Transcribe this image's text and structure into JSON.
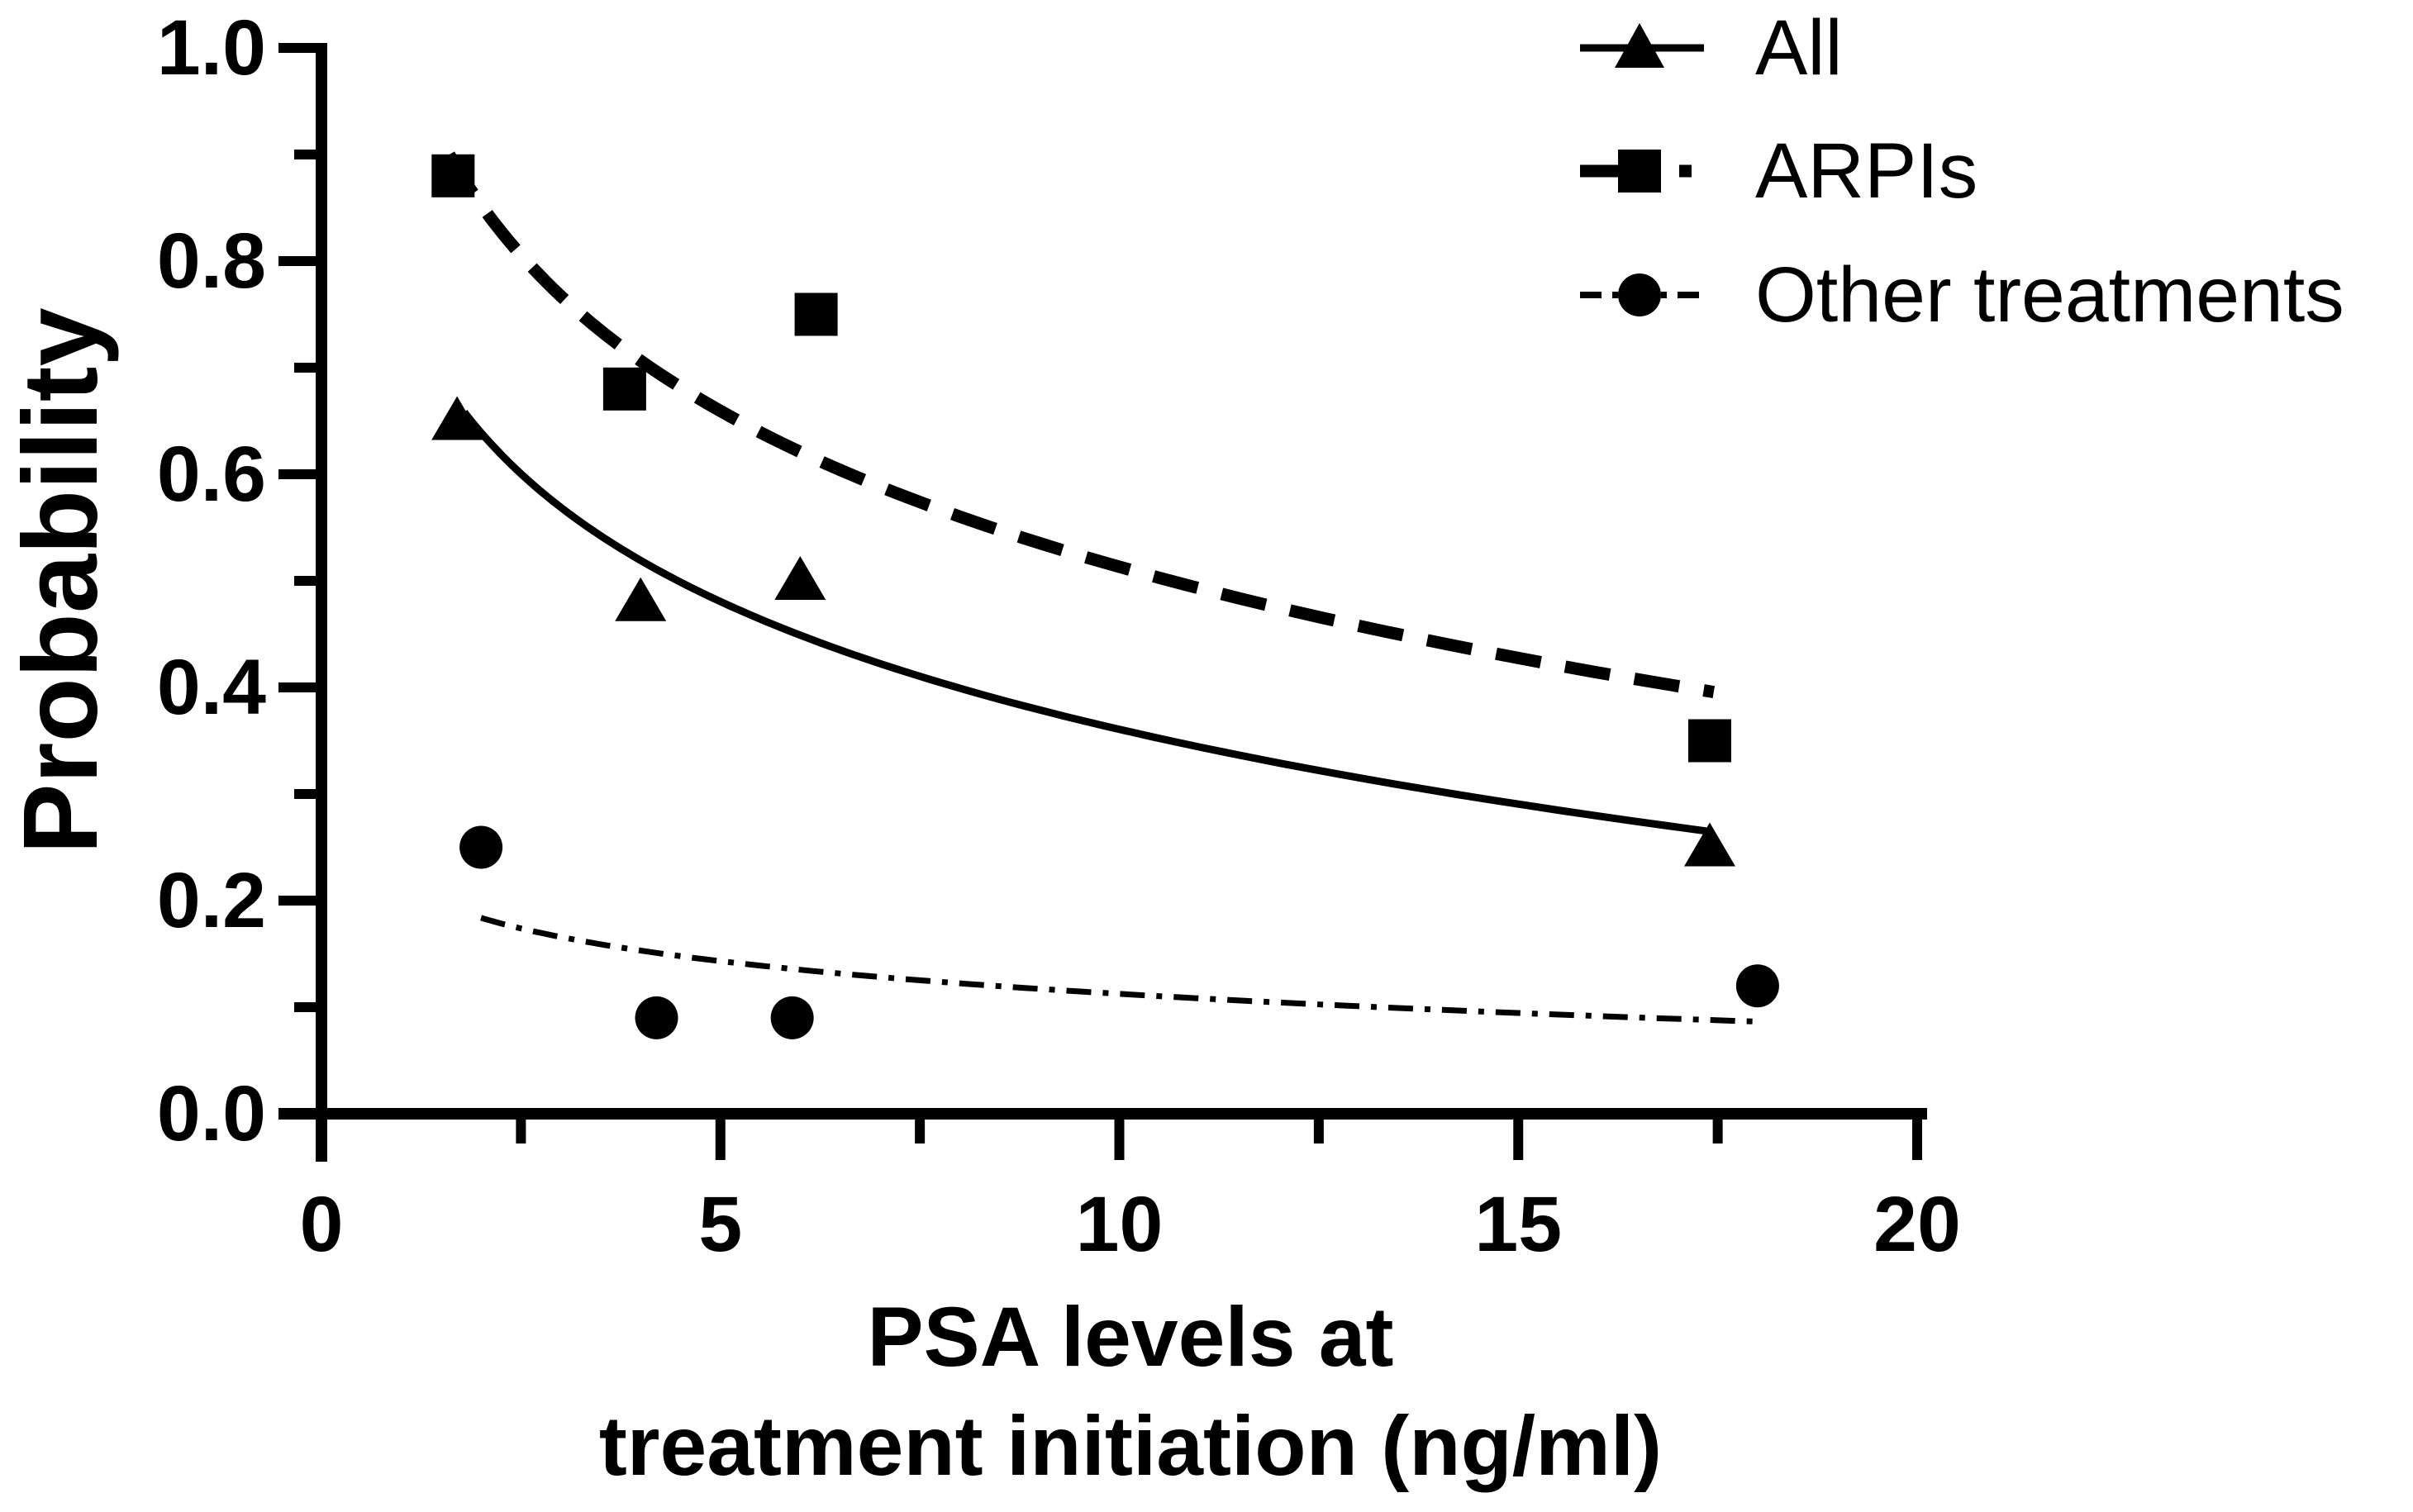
{
  "figure": {
    "background_color": "#ffffff",
    "ink_color": "#000000"
  },
  "chart_data": {
    "type": "scatter",
    "title": "",
    "xlabel": "PSA levels at treatment initiation (ng/ml)",
    "ylabel": "Probability",
    "xlim": [
      0,
      20
    ],
    "ylim": [
      0.0,
      1.0
    ],
    "grid": false,
    "legend_position": "top-right",
    "x_major_ticks": [
      0,
      5,
      10,
      15,
      20
    ],
    "x_tick_labels": [
      "0",
      "5",
      "10",
      "15",
      "20"
    ],
    "x_minor_ticks": [
      2.5,
      7.5,
      12.5,
      17.5
    ],
    "y_major_ticks": [
      0.0,
      0.2,
      0.4,
      0.6,
      0.8,
      1.0
    ],
    "y_tick_labels": [
      "0.0",
      "0.2",
      "0.4",
      "0.6",
      "0.8",
      "1.0"
    ],
    "y_minor_ticks": [
      0.1,
      0.3,
      0.5,
      0.7,
      0.9
    ],
    "series": [
      {
        "name": "All",
        "marker": "triangle",
        "line": "solid",
        "points": [
          [
            1.7,
            0.65
          ],
          [
            4.0,
            0.48
          ],
          [
            6.0,
            0.5
          ],
          [
            17.4,
            0.25
          ]
        ],
        "trend": {
          "type": "log",
          "a": 0.759,
          "b": -0.173,
          "x_start": 1.79,
          "x_end": 17.4
        }
      },
      {
        "name": "ARPIs",
        "marker": "square",
        "line": "dashed",
        "points": [
          [
            1.65,
            0.88
          ],
          [
            3.8,
            0.68
          ],
          [
            6.2,
            0.75
          ],
          [
            17.4,
            0.35
          ]
        ],
        "trend": {
          "type": "log",
          "a": 0.999,
          "b": -0.211,
          "x_start": 1.6,
          "x_end": 17.45
        }
      },
      {
        "name": "Other treatments",
        "marker": "circle",
        "line": "dash-dot",
        "points": [
          [
            2.0,
            0.25
          ],
          [
            4.2,
            0.09
          ],
          [
            5.9,
            0.09
          ],
          [
            18.0,
            0.12
          ]
        ],
        "trend": {
          "type": "log",
          "a": 0.2145,
          "b": -0.0443,
          "x_start": 2.0,
          "x_end": 18.0
        }
      }
    ]
  },
  "axis_titles": {
    "y": "Probability",
    "x_line1": "PSA levels at",
    "x_line2": "treatment initiation (ng/ml)"
  },
  "legend": {
    "items": [
      {
        "label": "All",
        "marker": "triangle",
        "line": "solid"
      },
      {
        "label": "ARPIs",
        "marker": "square",
        "line": "dashed"
      },
      {
        "label": "Other treatments",
        "marker": "circle",
        "line": "dash-dot"
      }
    ]
  }
}
